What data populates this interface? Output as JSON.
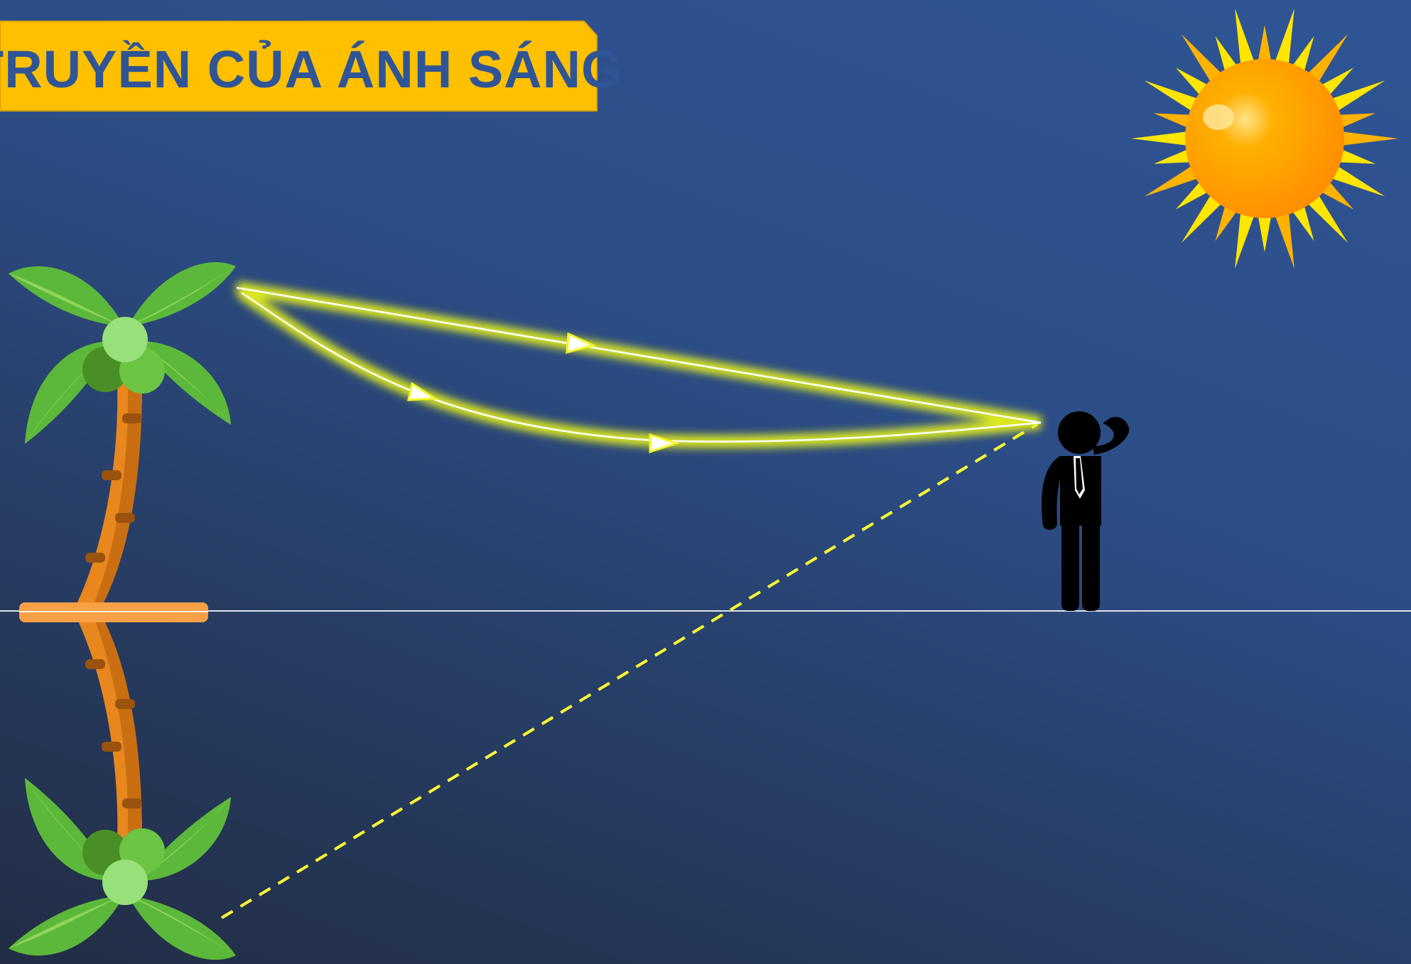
{
  "title": {
    "text": "TRUYỀN CỦA ÁNH SÁNG"
  },
  "colors": {
    "background_top": "#2f5595",
    "background_bottom": "#222d45",
    "banner_fill": "#ffc000",
    "banner_text": "#2f5597",
    "ray_glow": "#e6f21a",
    "ray_core": "#ffffff",
    "dashed_line": "#ffff33",
    "palm_leaf": "#5cb83a",
    "palm_leaf_light": "#8fd65a",
    "palm_trunk": "#e8871e",
    "palm_trunk_dark": "#b8640f",
    "coconut": "#98e07a",
    "sun_outer": "#ffdd00",
    "sun_core": "#ff9a00",
    "person": "#000000",
    "ground_line": "#ffffff"
  },
  "icons": {
    "sun": "sun-icon",
    "palm_tree": "palm-tree-icon",
    "palm_reflection": "palm-tree-reflection-icon",
    "person": "person-thinking-icon"
  }
}
